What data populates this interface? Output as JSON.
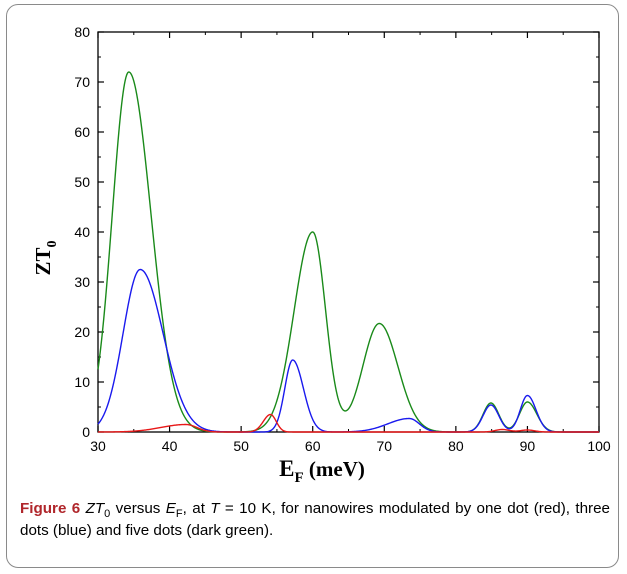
{
  "chart_data": {
    "type": "line",
    "xlabel_main": "E",
    "xlabel_sub": "F",
    "xlabel_unit": " (meV)",
    "ylabel_main": "ZT",
    "ylabel_sub": "0",
    "xlim": [
      30,
      100
    ],
    "ylim": [
      0,
      80
    ],
    "x_ticks": [
      30,
      40,
      50,
      60,
      70,
      80,
      90,
      100
    ],
    "y_ticks": [
      0,
      10,
      20,
      30,
      40,
      50,
      60,
      70,
      80
    ],
    "grid": false,
    "legend": "none",
    "series": [
      {
        "color": "#1a8a1a",
        "peaks": [
          {
            "center": 34.3,
            "height": 72,
            "width_left": 2.3,
            "width_right": 3.1
          },
          {
            "center": 60.0,
            "height": 40,
            "width_left": 2.6,
            "width_right": 1.8
          },
          {
            "center": 69.3,
            "height": 21.7,
            "width_left": 2.3,
            "width_right": 2.6
          },
          {
            "center": 84.9,
            "height": 5.8,
            "width_left": 1.1,
            "width_right": 1.1
          },
          {
            "center": 90.0,
            "height": 6.0,
            "width_left": 1.1,
            "width_right": 1.3
          }
        ]
      },
      {
        "color": "#1a1aee",
        "peaks": [
          {
            "center": 35.9,
            "height": 32.5,
            "width_left": 2.4,
            "width_right": 3.2
          },
          {
            "center": 57.2,
            "height": 14.4,
            "width_left": 1.1,
            "width_right": 1.5
          },
          {
            "center": 73.5,
            "height": 2.7,
            "width_left": 3.0,
            "width_right": 1.4
          },
          {
            "center": 84.9,
            "height": 5.4,
            "width_left": 1.1,
            "width_right": 1.1
          },
          {
            "center": 90.0,
            "height": 7.3,
            "width_left": 1.0,
            "width_right": 1.2
          }
        ]
      },
      {
        "color": "#e81818",
        "peaks": [
          {
            "center": 42.3,
            "height": 1.5,
            "width_left": 3.5,
            "width_right": 1.5
          },
          {
            "center": 54.1,
            "height": 3.5,
            "width_left": 1.0,
            "width_right": 0.8
          },
          {
            "center": 86.5,
            "height": 0.5,
            "width_left": 1.0,
            "width_right": 1.0
          },
          {
            "center": 90.0,
            "height": 0.4,
            "width_left": 1.0,
            "width_right": 1.0
          }
        ]
      }
    ]
  },
  "caption": {
    "figure_label": "Figure 6",
    "zt": "ZT",
    "zt_sub": "0",
    "versus": " versus ",
    "ef": "E",
    "ef_sub": "F",
    "at_text": ", at ",
    "t_var": "T",
    "rest": " = 10 K, for nanowires modulated by one dot (red), three dots (blue) and five dots (dark green)",
    "period": "."
  }
}
